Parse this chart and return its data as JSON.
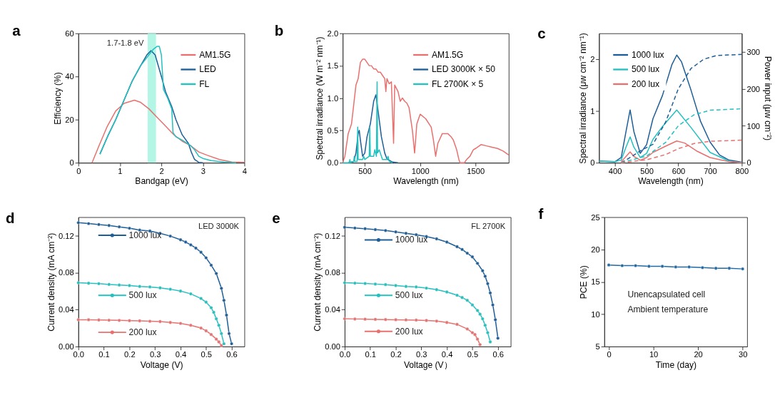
{
  "chart_data": [
    {
      "type": "line",
      "title": "a",
      "xlabel": "Bandgap (eV)",
      "ylabel": "Efficiency (%)",
      "xlim": [
        0,
        4
      ],
      "ylim": [
        0,
        60
      ],
      "xticks": [
        0,
        1,
        2,
        3,
        4
      ],
      "yticks": [
        0,
        20,
        40,
        60
      ],
      "legend": "top right",
      "bands": [
        {
          "axis": "x",
          "from": 1.67,
          "to": 1.87,
          "label": "1.7-1.8 eV",
          "color": "#a6f5e0"
        }
      ],
      "series": [
        {
          "name": "AM1.5G",
          "color": "#e8706e",
          "x": [
            0.33,
            0.5,
            0.7,
            0.9,
            1.1,
            1.35,
            1.5,
            1.7,
            1.9,
            2.1,
            2.3,
            2.5,
            2.7,
            2.9,
            3.1,
            3.4,
            3.7,
            4.0
          ],
          "values": [
            0,
            8,
            17,
            24,
            27.5,
            29,
            28,
            25,
            21,
            17,
            13,
            10,
            8,
            5,
            3.5,
            1.5,
            0.3,
            0.2
          ]
        },
        {
          "name": "LED",
          "color": "#1d5e98",
          "x": [
            0.52,
            0.7,
            0.9,
            1.1,
            1.3,
            1.5,
            1.65,
            1.75,
            1.85,
            2.0,
            2.1,
            2.25,
            2.35,
            2.5,
            2.65,
            2.72,
            2.8,
            2.9,
            3.0
          ],
          "values": [
            4,
            12,
            20,
            29,
            38,
            45,
            50,
            52,
            50,
            40,
            33,
            26,
            20,
            13,
            9,
            5,
            1.5,
            0.2,
            0
          ]
        },
        {
          "name": "FL",
          "color": "#22c1c0",
          "x": [
            0.52,
            0.7,
            0.9,
            1.1,
            1.3,
            1.5,
            1.7,
            1.8,
            1.9,
            1.95,
            2.0,
            2.05,
            2.15,
            2.25,
            2.28,
            2.35,
            2.5,
            2.7,
            2.8,
            2.9,
            3.0,
            3.2,
            3.5,
            3.8
          ],
          "values": [
            4,
            12,
            20,
            29,
            38,
            45,
            50,
            52.5,
            54,
            54,
            50,
            34,
            30,
            25,
            14,
            12,
            10.5,
            8,
            6,
            3,
            2,
            1,
            0.3,
            0
          ]
        }
      ]
    },
    {
      "type": "line",
      "title": "b",
      "xlabel": "Wavelength (nm)",
      "ylabel": "Spectral irradiance (W m⁻² nm⁻¹)",
      "xlim": [
        300,
        1800
      ],
      "ylim": [
        0,
        2
      ],
      "xticks": [
        500,
        1000,
        1500
      ],
      "yticks": [
        {
          "value": 0,
          "label": "0.0"
        },
        {
          "value": 0.5,
          "label": "0.5"
        },
        {
          "value": 1,
          "label": "1.0"
        },
        {
          "value": 1.5,
          "label": "1.5"
        },
        {
          "value": 2,
          "label": "2.0"
        }
      ],
      "legend": "top right",
      "series": [
        {
          "name": "AM1.5G",
          "color": "#e8706e",
          "x": [
            300,
            320,
            350,
            380,
            400,
            420,
            440,
            460,
            480,
            500,
            520,
            540,
            560,
            580,
            600,
            620,
            640,
            660,
            680,
            690,
            700,
            720,
            740,
            760,
            770,
            800,
            820,
            840,
            860,
            880,
            900,
            930,
            950,
            970,
            1000,
            1050,
            1100,
            1120,
            1140,
            1160,
            1200,
            1250,
            1280,
            1300,
            1330,
            1350,
            1360,
            1400,
            1420,
            1450,
            1480,
            1500,
            1550,
            1600,
            1650,
            1700,
            1750,
            1800
          ],
          "values": [
            0,
            0.1,
            0.45,
            0.6,
            0.9,
            1.2,
            1.3,
            1.55,
            1.6,
            1.6,
            1.55,
            1.5,
            1.5,
            1.45,
            1.45,
            1.4,
            1.4,
            1.35,
            1.3,
            1.1,
            1.3,
            1.22,
            1.25,
            0.3,
            1.2,
            1.1,
            0.95,
            1.0,
            0.95,
            0.92,
            0.85,
            0.5,
            0.15,
            0.6,
            0.75,
            0.68,
            0.55,
            0.35,
            0.1,
            0.3,
            0.45,
            0.45,
            0.4,
            0.35,
            0.2,
            0.05,
            0,
            0,
            0.05,
            0.1,
            0.2,
            0.22,
            0.28,
            0.26,
            0.24,
            0.22,
            0.18,
            0.12
          ]
        },
        {
          "name": "LED 3000K × 50",
          "color": "#1d5e98",
          "x": [
            350,
            400,
            420,
            440,
            450,
            460,
            480,
            500,
            520,
            550,
            580,
            600,
            620,
            650,
            680,
            700,
            750,
            800
          ],
          "values": [
            0,
            0.02,
            0.15,
            0.45,
            0.5,
            0.35,
            0.1,
            0.15,
            0.4,
            0.6,
            0.95,
            1.05,
            0.8,
            0.4,
            0.15,
            0.06,
            0.01,
            0
          ]
        },
        {
          "name": "FL 2700K × 5",
          "color": "#22c1c0",
          "x": [
            300,
            360,
            365,
            370,
            400,
            405,
            410,
            430,
            436,
            440,
            480,
            490,
            500,
            540,
            545,
            550,
            580,
            590,
            605,
            611,
            615,
            630,
            650,
            660,
            700,
            710,
            720,
            750
          ],
          "values": [
            0,
            0,
            0.05,
            0,
            0.02,
            0.1,
            0.02,
            0.02,
            0.55,
            0.05,
            0.05,
            0.1,
            0.05,
            0.1,
            0.55,
            0.1,
            0.1,
            0.2,
            0.1,
            1.25,
            0.15,
            0.2,
            0.1,
            0.05,
            0.05,
            0.1,
            0.02,
            0
          ]
        }
      ]
    },
    {
      "type": "line",
      "title": "c",
      "xlabel": "Wavelength (nm)",
      "ylabel": "Spectral irradiance (μw cm⁻² nm⁻¹)",
      "y2label": "Power input (μw cm⁻²)",
      "xlim": [
        350,
        800
      ],
      "ylim": [
        0,
        2.5
      ],
      "y2lim": [
        0,
        350
      ],
      "xticks": [
        400,
        500,
        600,
        700,
        800
      ],
      "yticks": [
        0,
        1,
        2
      ],
      "y2ticks": [
        0,
        100,
        200,
        300
      ],
      "legend": "top left",
      "series": [
        {
          "name": "1000 lux",
          "color": "#1d5e98",
          "x": [
            350,
            400,
            420,
            435,
            448,
            460,
            480,
            500,
            520,
            550,
            580,
            595,
            610,
            640,
            670,
            700,
            730,
            760,
            800
          ],
          "values": [
            0.03,
            0.02,
            0.1,
            0.6,
            1.02,
            0.6,
            0.18,
            0.35,
            0.85,
            1.3,
            1.9,
            2.08,
            1.95,
            1.4,
            0.8,
            0.4,
            0.15,
            0.05,
            0.01
          ]
        },
        {
          "name": "500 lux",
          "color": "#22c1c0",
          "x": [
            350,
            400,
            420,
            435,
            448,
            460,
            480,
            500,
            520,
            550,
            595,
            640,
            700,
            760,
            800
          ],
          "values": [
            0.03,
            0.02,
            0.05,
            0.3,
            0.5,
            0.3,
            0.1,
            0.18,
            0.45,
            0.7,
            1.02,
            0.68,
            0.2,
            0.03,
            0
          ]
        },
        {
          "name": "200 lux",
          "color": "#e8706e",
          "x": [
            420,
            435,
            448,
            460,
            480,
            500,
            520,
            560,
            595,
            620,
            660,
            700,
            760,
            800
          ],
          "values": [
            0.02,
            0.12,
            0.21,
            0.12,
            0.05,
            0.1,
            0.2,
            0.32,
            0.42,
            0.38,
            0.22,
            0.1,
            0.02,
            0
          ]
        },
        {
          "color": "#1d5e98",
          "axis": "y2",
          "line_style": "dashed",
          "x": [
            420,
            450,
            480,
            520,
            560,
            600,
            640,
            680,
            720,
            800
          ],
          "values": [
            0,
            15,
            32,
            50,
            110,
            200,
            255,
            280,
            290,
            293
          ]
        },
        {
          "color": "#22c1c0",
          "axis": "y2",
          "line_style": "dashed",
          "x": [
            420,
            450,
            500,
            560,
            600,
            650,
            700,
            800
          ],
          "values": [
            0,
            7,
            18,
            55,
            100,
            130,
            142,
            146
          ]
        },
        {
          "color": "#e8706e",
          "axis": "y2",
          "line_style": "dashed",
          "x": [
            420,
            450,
            500,
            560,
            600,
            650,
            700,
            800
          ],
          "values": [
            0,
            3,
            8,
            22,
            38,
            52,
            58,
            61
          ]
        }
      ]
    },
    {
      "type": "line",
      "title": "d",
      "xlabel": "Voltage (V)",
      "ylabel": "Current density (mA cm⁻²)",
      "xlim": [
        0,
        0.65
      ],
      "ylim": [
        0,
        0.14
      ],
      "marker": "circle",
      "legend": "left",
      "annotations": [
        "LED 3000K"
      ],
      "xticks": [
        {
          "value": 0,
          "label": "0.0"
        },
        0.1,
        0.2,
        0.3,
        0.4,
        0.5,
        0.6
      ],
      "yticks": [
        {
          "value": 0,
          "label": "0.00"
        },
        0.04,
        0.08,
        0.12
      ],
      "series": [
        {
          "name": "1000 lux",
          "color": "#1d5e98",
          "x": [
            0,
            0.04,
            0.08,
            0.12,
            0.16,
            0.2,
            0.24,
            0.28,
            0.32,
            0.36,
            0.4,
            0.42,
            0.44,
            0.46,
            0.48,
            0.5,
            0.52,
            0.54,
            0.56,
            0.57,
            0.58,
            0.59,
            0.6
          ],
          "values": [
            0.134,
            0.133,
            0.132,
            0.131,
            0.1295,
            0.128,
            0.126,
            0.125,
            0.1225,
            0.1195,
            0.1155,
            0.113,
            0.11,
            0.1065,
            0.102,
            0.096,
            0.088,
            0.079,
            0.063,
            0.05,
            0.034,
            0.014,
            0.003
          ]
        },
        {
          "name": "500 lux",
          "color": "#22c1c0",
          "x": [
            0,
            0.04,
            0.08,
            0.12,
            0.16,
            0.2,
            0.24,
            0.28,
            0.32,
            0.36,
            0.4,
            0.44,
            0.48,
            0.5,
            0.52,
            0.53,
            0.54,
            0.55,
            0.56,
            0.57
          ],
          "values": [
            0.069,
            0.0685,
            0.068,
            0.0672,
            0.0665,
            0.066,
            0.065,
            0.0645,
            0.0635,
            0.062,
            0.06,
            0.057,
            0.052,
            0.048,
            0.042,
            0.037,
            0.03,
            0.023,
            0.014,
            0.003
          ]
        },
        {
          "name": "200 lux",
          "color": "#e8706e",
          "x": [
            0,
            0.04,
            0.08,
            0.12,
            0.16,
            0.2,
            0.24,
            0.28,
            0.32,
            0.36,
            0.4,
            0.44,
            0.48,
            0.5,
            0.52,
            0.54,
            0.55,
            0.56
          ],
          "values": [
            0.029,
            0.029,
            0.0287,
            0.0285,
            0.0283,
            0.028,
            0.0278,
            0.0273,
            0.027,
            0.026,
            0.025,
            0.023,
            0.02,
            0.017,
            0.013,
            0.008,
            0.005,
            0.001
          ]
        }
      ]
    },
    {
      "type": "line",
      "title": "e",
      "xlabel": "Voltage (V）",
      "ylabel": "Current density (mA cm⁻²)",
      "xlim": [
        0,
        0.65
      ],
      "ylim": [
        0,
        0.14
      ],
      "marker": "circle",
      "legend": "left",
      "annotations": [
        "FL 2700K"
      ],
      "xticks": [
        {
          "value": 0,
          "label": "0.0"
        },
        0.1,
        0.2,
        0.3,
        0.4,
        0.5,
        0.6
      ],
      "yticks": [
        {
          "value": 0,
          "label": "0.00"
        },
        0.04,
        0.08,
        0.12
      ],
      "series": [
        {
          "name": "1000 lux",
          "color": "#1d5e98",
          "x": [
            0,
            0.04,
            0.08,
            0.12,
            0.16,
            0.2,
            0.24,
            0.28,
            0.32,
            0.36,
            0.4,
            0.44,
            0.46,
            0.48,
            0.5,
            0.52,
            0.54,
            0.55,
            0.56,
            0.57,
            0.58,
            0.59,
            0.6
          ],
          "values": [
            0.129,
            0.1282,
            0.1275,
            0.1265,
            0.1255,
            0.124,
            0.1225,
            0.121,
            0.119,
            0.1165,
            0.113,
            0.108,
            0.105,
            0.101,
            0.097,
            0.09,
            0.082,
            0.076,
            0.068,
            0.058,
            0.045,
            0.029,
            0.009
          ]
        },
        {
          "name": "500 lux",
          "color": "#22c1c0",
          "x": [
            0,
            0.04,
            0.08,
            0.12,
            0.16,
            0.2,
            0.24,
            0.28,
            0.32,
            0.36,
            0.4,
            0.44,
            0.46,
            0.48,
            0.5,
            0.52,
            0.53,
            0.54,
            0.55,
            0.56,
            0.57
          ],
          "values": [
            0.069,
            0.0686,
            0.0682,
            0.0676,
            0.067,
            0.066,
            0.065,
            0.0645,
            0.0632,
            0.0615,
            0.059,
            0.0555,
            0.053,
            0.05,
            0.045,
            0.039,
            0.035,
            0.03,
            0.023,
            0.015,
            0.005
          ]
        },
        {
          "name": "200 lux",
          "color": "#e8706e",
          "x": [
            0,
            0.04,
            0.08,
            0.12,
            0.16,
            0.2,
            0.24,
            0.28,
            0.32,
            0.36,
            0.4,
            0.44,
            0.48,
            0.5,
            0.51,
            0.52,
            0.53
          ],
          "values": [
            0.03,
            0.0298,
            0.0296,
            0.0294,
            0.0292,
            0.029,
            0.0288,
            0.0286,
            0.0282,
            0.0275,
            0.026,
            0.024,
            0.019,
            0.015,
            0.013,
            0.008,
            0.002
          ]
        }
      ]
    },
    {
      "type": "line",
      "title": "f",
      "xlabel": "Time (day)",
      "ylabel": "PCE (%)",
      "xlim": [
        -1,
        31
      ],
      "ylim": [
        5,
        25
      ],
      "xticks": [
        0,
        10,
        20,
        30
      ],
      "yticks": [
        5,
        10,
        15,
        20,
        25
      ],
      "marker": "circle",
      "annotations": [
        "Unencapsulated cell",
        "Ambient temperature"
      ],
      "series": [
        {
          "color": "#1d6aa8",
          "x": [
            0,
            3,
            6,
            9,
            12,
            15,
            18,
            21,
            24,
            27,
            30
          ],
          "values": [
            17.6,
            17.5,
            17.5,
            17.4,
            17.4,
            17.3,
            17.3,
            17.2,
            17.1,
            17.1,
            17.0
          ]
        }
      ]
    }
  ]
}
